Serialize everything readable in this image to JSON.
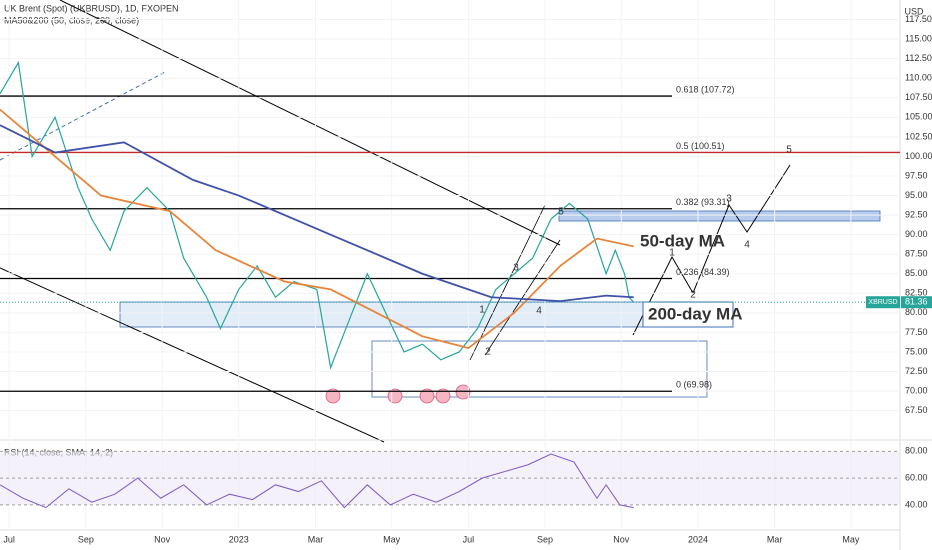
{
  "chart_data": [
    {
      "type": "line",
      "title": "UK Brent (Spot) (UKBRUSD), 1D, FXOPEN",
      "subtitle": "MA50&200 (50, close, 200, close)",
      "currency": "USD",
      "symbol": "XBRUSD",
      "xlim": [
        2022.48,
        2024.44
      ],
      "xticks": [
        {
          "value": 2022.5,
          "label": "Jul"
        },
        {
          "value": 2022.667,
          "label": "Sep"
        },
        {
          "value": 2022.833,
          "label": "Nov"
        },
        {
          "value": 2023.0,
          "label": "2023"
        },
        {
          "value": 2023.167,
          "label": "Mar"
        },
        {
          "value": 2023.333,
          "label": "May"
        },
        {
          "value": 2023.5,
          "label": "Jul"
        },
        {
          "value": 2023.667,
          "label": "Sep"
        },
        {
          "value": 2023.833,
          "label": "Nov"
        },
        {
          "value": 2024.0,
          "label": "2024"
        },
        {
          "value": 2024.167,
          "label": "Mar"
        },
        {
          "value": 2024.333,
          "label": "May"
        }
      ],
      "ylim": [
        64,
        120
      ],
      "yticks": [
        {
          "value": 117.5,
          "label": "117.50"
        },
        {
          "value": 115,
          "label": "115.00"
        },
        {
          "value": 112.5,
          "label": "112.50"
        },
        {
          "value": 110,
          "label": "110.00"
        },
        {
          "value": 107.5,
          "label": "107.50"
        },
        {
          "value": 105,
          "label": "105.00"
        },
        {
          "value": 102.5,
          "label": "102.50"
        },
        {
          "value": 100,
          "label": "100.00"
        },
        {
          "value": 97.5,
          "label": "97.50"
        },
        {
          "value": 95,
          "label": "95.00"
        },
        {
          "value": 92.5,
          "label": "92.50"
        },
        {
          "value": 90,
          "label": "90.00"
        },
        {
          "value": 87.5,
          "label": "87.50"
        },
        {
          "value": 85,
          "label": "85.00"
        },
        {
          "value": 82.5,
          "label": "82.50"
        },
        {
          "value": 80,
          "label": "80.00"
        },
        {
          "value": 77.5,
          "label": "77.50"
        },
        {
          "value": 75,
          "label": "75.00"
        },
        {
          "value": 72.5,
          "label": "72.50"
        },
        {
          "value": 70,
          "label": "70.00"
        },
        {
          "value": 67.5,
          "label": "67.50"
        }
      ],
      "grid": true,
      "series": [
        {
          "color": "#26a69a",
          "x": [
            2022.48,
            2022.52,
            2022.55,
            2022.6,
            2022.65,
            2022.68,
            2022.72,
            2022.75,
            2022.8,
            2022.85,
            2022.88,
            2022.93,
            2022.96,
            2023.0,
            2023.04,
            2023.08,
            2023.12,
            2023.17,
            2023.2,
            2023.24,
            2023.28,
            2023.32,
            2023.36,
            2023.4,
            2023.44,
            2023.48,
            2023.52,
            2023.56,
            2023.6,
            2023.64,
            2023.68,
            2023.72,
            2023.76,
            2023.8,
            2023.82,
            2023.84,
            2023.85,
            2023.86
          ],
          "values": [
            108,
            112,
            100,
            105,
            96,
            92,
            88,
            93,
            96,
            93,
            87,
            82,
            78,
            83,
            86,
            82,
            84,
            83,
            73,
            79,
            85,
            80,
            75,
            76,
            74,
            75,
            78,
            83,
            85,
            87,
            92,
            94,
            92,
            85,
            88,
            85,
            82,
            81.36
          ]
        },
        {
          "name": "50-day MA",
          "color": "#e8843a",
          "x": [
            2022.48,
            2022.6,
            2022.7,
            2022.85,
            2022.95,
            2023.1,
            2023.2,
            2023.3,
            2023.4,
            2023.5,
            2023.6,
            2023.7,
            2023.78,
            2023.86
          ],
          "values": [
            106,
            100,
            95,
            93,
            88,
            84,
            83,
            80,
            77,
            75.5,
            80,
            86,
            89.5,
            88.5
          ]
        },
        {
          "name": "200-day MA",
          "color": "#3f51a8",
          "x": [
            2022.48,
            2022.6,
            2022.75,
            2022.9,
            2023.0,
            2023.2,
            2023.4,
            2023.55,
            2023.7,
            2023.8,
            2023.86
          ],
          "values": [
            104,
            100.5,
            101.8,
            97,
            95,
            90,
            85,
            82,
            81.5,
            82.2,
            82
          ]
        }
      ],
      "fib_levels": [
        {
          "value": 107.72,
          "label": "0.618 (107.72)"
        },
        {
          "value": 100.51,
          "label": "0.5 (100.51)"
        },
        {
          "value": 93.31,
          "label": "0.382 (93.31)"
        },
        {
          "value": 84.39,
          "label": "0.236 (84.39)"
        },
        {
          "value": 69.98,
          "label": "0 (69.98)"
        }
      ],
      "wave_labels": [
        "5",
        "1",
        "2",
        "3",
        "4",
        "1",
        "2",
        "3",
        "4",
        "5"
      ]
    },
    {
      "type": "line",
      "title": "RSI (14, close, SMA, 14, 2)",
      "ylim": [
        25,
        87
      ],
      "yticks": [
        {
          "value": 80,
          "label": "80.00"
        },
        {
          "value": 60,
          "label": "60.00"
        },
        {
          "value": 40,
          "label": "40.00"
        }
      ],
      "series": [
        {
          "color": "#7e57c2",
          "x": [
            2022.48,
            2022.53,
            2022.58,
            2022.63,
            2022.68,
            2022.73,
            2022.78,
            2022.83,
            2022.88,
            2022.93,
            2022.98,
            2023.03,
            2023.08,
            2023.13,
            2023.18,
            2023.23,
            2023.28,
            2023.33,
            2023.38,
            2023.43,
            2023.48,
            2023.53,
            2023.58,
            2023.63,
            2023.68,
            2023.73,
            2023.78,
            2023.8,
            2023.83,
            2023.86
          ],
          "values": [
            55,
            45,
            38,
            52,
            42,
            48,
            60,
            45,
            55,
            40,
            48,
            44,
            55,
            50,
            58,
            38,
            55,
            40,
            48,
            42,
            50,
            60,
            65,
            70,
            78,
            72,
            45,
            55,
            40,
            38
          ]
        }
      ]
    }
  ]
}
